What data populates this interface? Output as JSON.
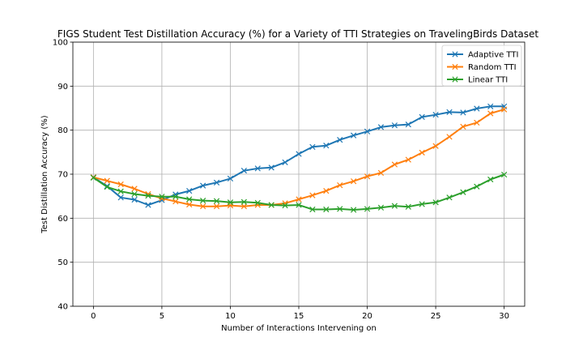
{
  "chart_data": {
    "type": "line",
    "title": "FIGS Student Test Distillation Accuracy (%) for a Variety of TTI Strategies on TravelingBirds Dataset",
    "xlabel": "Number of Interactions Intervening on",
    "ylabel": "Test Distillation Accuracy (%)",
    "xlim": [
      -1.5,
      31.5
    ],
    "ylim": [
      40,
      100
    ],
    "xticks": [
      0,
      5,
      10,
      15,
      20,
      25,
      30
    ],
    "yticks": [
      40,
      50,
      60,
      70,
      80,
      90,
      100
    ],
    "grid": true,
    "legend_position": "top-right",
    "marker": "x",
    "x": [
      0,
      1,
      2,
      3,
      4,
      5,
      6,
      7,
      8,
      9,
      10,
      11,
      12,
      13,
      14,
      15,
      16,
      17,
      18,
      19,
      20,
      21,
      22,
      23,
      24,
      25,
      26,
      27,
      28,
      29,
      30
    ],
    "series": [
      {
        "name": "Adaptive TTI",
        "color": "#1f77b4",
        "values": [
          69.3,
          67.3,
          64.7,
          64.2,
          63.0,
          64.1,
          65.4,
          66.2,
          67.4,
          68.1,
          69.0,
          70.8,
          71.3,
          71.5,
          72.7,
          74.6,
          76.2,
          76.5,
          77.8,
          78.8,
          79.7,
          80.7,
          81.1,
          81.3,
          83.0,
          83.5,
          84.1,
          84.0,
          84.9,
          85.4,
          85.4
        ]
      },
      {
        "name": "Random TTI",
        "color": "#ff7f0e",
        "values": [
          69.3,
          68.5,
          67.7,
          66.7,
          65.5,
          64.5,
          63.8,
          63.1,
          62.7,
          62.7,
          62.9,
          62.7,
          63.0,
          63.0,
          63.4,
          64.3,
          65.2,
          66.2,
          67.5,
          68.4,
          69.5,
          70.3,
          72.2,
          73.3,
          74.9,
          76.4,
          78.5,
          80.8,
          81.7,
          83.8,
          84.7
        ]
      },
      {
        "name": "Linear TTI",
        "color": "#2ca02c",
        "values": [
          69.2,
          67.1,
          66.1,
          65.5,
          65.1,
          64.9,
          64.9,
          64.3,
          64.0,
          63.9,
          63.6,
          63.7,
          63.5,
          63.0,
          62.9,
          63.0,
          62.0,
          62.0,
          62.1,
          61.9,
          62.1,
          62.4,
          62.8,
          62.6,
          63.2,
          63.6,
          64.7,
          65.9,
          67.2,
          68.8,
          69.9
        ]
      }
    ]
  }
}
